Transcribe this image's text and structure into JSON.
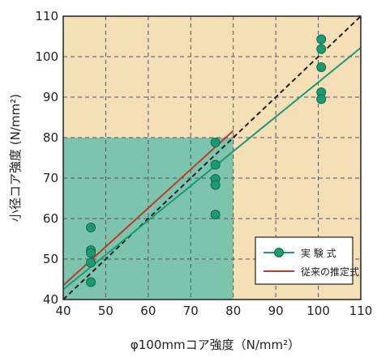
{
  "chart_data": {
    "type": "scatter",
    "title": "",
    "xlabel": "φ100mmコア強度（N/mm²）",
    "ylabel": "小径コア強度 (N/mm²)",
    "xlim": [
      40,
      110
    ],
    "ylim": [
      40,
      110
    ],
    "xticks": [
      40,
      50,
      60,
      70,
      80,
      90,
      100,
      110
    ],
    "yticks": [
      40,
      50,
      60,
      70,
      80,
      90,
      100,
      110
    ],
    "grid": true,
    "legend_position": "bottom-right",
    "background_colors": {
      "plot": "#f5dfb7",
      "highlight_region": "#7cc4ae",
      "grid": "#555555"
    },
    "highlight_region": {
      "x": [
        40,
        80
      ],
      "y": [
        40,
        80
      ]
    },
    "series": [
      {
        "name": "実 験 式",
        "kind": "scatter_with_fit",
        "color": "#1e9a73",
        "points": [
          [
            46.5,
            57.8
          ],
          [
            46.5,
            52.2
          ],
          [
            46.5,
            51.5
          ],
          [
            46.5,
            49.1
          ],
          [
            46.5,
            44.3
          ],
          [
            75.8,
            78.8
          ],
          [
            75.8,
            73.3
          ],
          [
            75.8,
            69.8
          ],
          [
            75.8,
            68.3
          ],
          [
            75.8,
            61.0
          ],
          [
            100.7,
            104.3
          ],
          [
            100.7,
            101.9
          ],
          [
            100.7,
            97.4
          ],
          [
            100.7,
            91.2
          ],
          [
            100.7,
            89.5
          ]
        ],
        "fit_line": [
          [
            40,
            42.5
          ],
          [
            110,
            102.2
          ]
        ]
      },
      {
        "name": "従来の推定式",
        "kind": "line",
        "color": "#c0392b",
        "line": [
          [
            40,
            43.5
          ],
          [
            80,
            81.7
          ]
        ]
      },
      {
        "name": "",
        "kind": "reference_line",
        "style": "dashed",
        "color": "#222222",
        "line": [
          [
            40,
            40
          ],
          [
            110,
            110
          ]
        ]
      }
    ]
  }
}
